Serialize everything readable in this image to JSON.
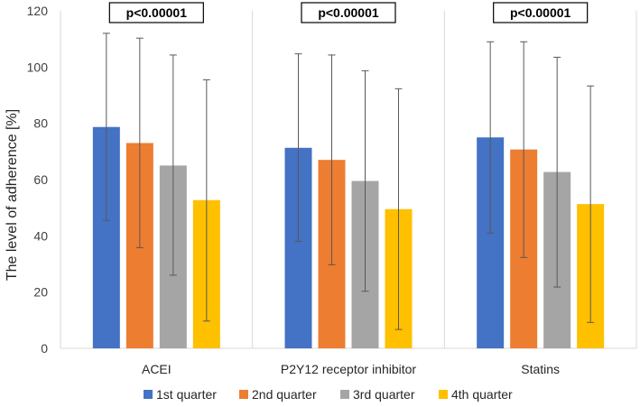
{
  "chart_data": {
    "type": "bar",
    "title": "",
    "xlabel": "",
    "ylabel": "The level of adherence [%]",
    "ylim": [
      0,
      120
    ],
    "yticks": [
      0,
      20,
      40,
      60,
      80,
      100,
      120
    ],
    "grid": "vertical-separators",
    "legend_position": "bottom",
    "categories": [
      "ACEI",
      "P2Y12 receptor inhibitor",
      "Statins"
    ],
    "annotations": [
      "p<0.00001",
      "p<0.00001",
      "p<0.00001"
    ],
    "series": [
      {
        "name": "1st quarter",
        "color": "#4472C4",
        "values": [
          78.7,
          71.3,
          75.0
        ],
        "error_low": [
          45.5,
          38.0,
          41.0
        ],
        "error_high": [
          112.0,
          104.7,
          109.0
        ]
      },
      {
        "name": "2nd quarter",
        "color": "#ED7D31",
        "values": [
          73.0,
          67.0,
          70.7
        ],
        "error_low": [
          35.8,
          29.7,
          32.3
        ],
        "error_high": [
          110.3,
          104.3,
          109.0
        ]
      },
      {
        "name": "3rd quarter",
        "color": "#A5A5A5",
        "values": [
          65.0,
          59.5,
          62.7
        ],
        "error_low": [
          26.0,
          20.3,
          21.8
        ],
        "error_high": [
          104.3,
          98.7,
          103.5
        ]
      },
      {
        "name": "4th quarter",
        "color": "#FFC000",
        "values": [
          52.7,
          49.5,
          51.3
        ],
        "error_low": [
          9.7,
          6.7,
          9.2
        ],
        "error_high": [
          95.5,
          92.3,
          93.3
        ]
      }
    ]
  }
}
